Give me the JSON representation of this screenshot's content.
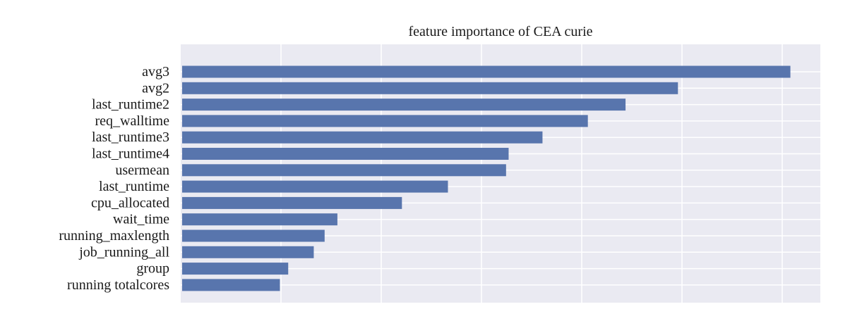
{
  "chart_data": {
    "type": "bar",
    "orientation": "horizontal",
    "title": "feature importance of CEA curie",
    "xlabel": "",
    "ylabel": "",
    "x_tick_labels_shown": false,
    "grid": true,
    "legend": "none",
    "xlim": [
      0,
      1
    ],
    "categories": [
      "avg3",
      "avg2",
      "last_runtime2",
      "req_walltime",
      "last_runtime3",
      "last_runtime4",
      "usermean",
      "last_runtime",
      "cpu_allocated",
      "wait_time",
      "running_maxlength",
      "job_running_all",
      "group",
      "running totalcores"
    ],
    "values": [
      0.952,
      0.776,
      0.694,
      0.635,
      0.564,
      0.511,
      0.507,
      0.416,
      0.344,
      0.243,
      0.223,
      0.206,
      0.166,
      0.153
    ],
    "colors": {
      "bar": "#5875ad",
      "plot_background": "#eaeaf2",
      "grid": "#ffffff",
      "text": "#1a1a1a"
    }
  }
}
